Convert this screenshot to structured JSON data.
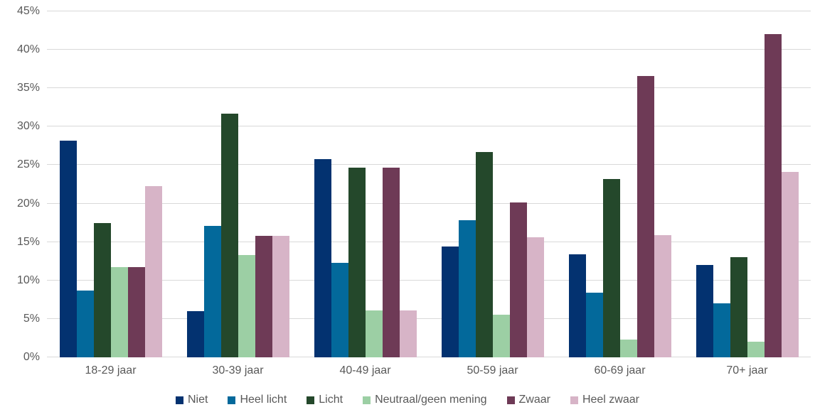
{
  "chart_data": {
    "type": "bar",
    "title": "",
    "categories": [
      "18-29 jaar",
      "30-39 jaar",
      "40-49 jaar",
      "50-59 jaar",
      "60-69 jaar",
      "70+ jaar"
    ],
    "series": [
      {
        "name": "Niet",
        "color": "#033270",
        "values": [
          28.2,
          6.0,
          25.8,
          14.4,
          13.4,
          12.0
        ]
      },
      {
        "name": "Heel licht",
        "color": "#03699B",
        "values": [
          8.7,
          17.1,
          12.3,
          17.8,
          8.4,
          7.0
        ]
      },
      {
        "name": "Licht",
        "color": "#24482B",
        "values": [
          17.5,
          31.7,
          24.7,
          26.7,
          23.2,
          13.0
        ]
      },
      {
        "name": "Neutraal/geen mening",
        "color": "#9CCFA4",
        "values": [
          11.7,
          13.3,
          6.1,
          5.5,
          2.3,
          2.0
        ]
      },
      {
        "name": "Zwaar",
        "color": "#6E3A56",
        "values": [
          11.7,
          15.8,
          24.7,
          20.1,
          36.6,
          42.0
        ]
      },
      {
        "name": "Heel zwaar",
        "color": "#D7B4C7",
        "values": [
          22.3,
          15.8,
          6.1,
          15.6,
          15.9,
          24.1
        ]
      }
    ],
    "y_axis": {
      "min": 0,
      "max": 45,
      "step": 5,
      "tick_labels": [
        "0%",
        "5%",
        "10%",
        "15%",
        "20%",
        "25%",
        "30%",
        "35%",
        "40%",
        "45%"
      ]
    },
    "grid": true,
    "legend_position": "bottom",
    "colors": {
      "background": "#FFFFFF",
      "gridline": "#D9D9D9",
      "axis_text": "#595959"
    }
  }
}
